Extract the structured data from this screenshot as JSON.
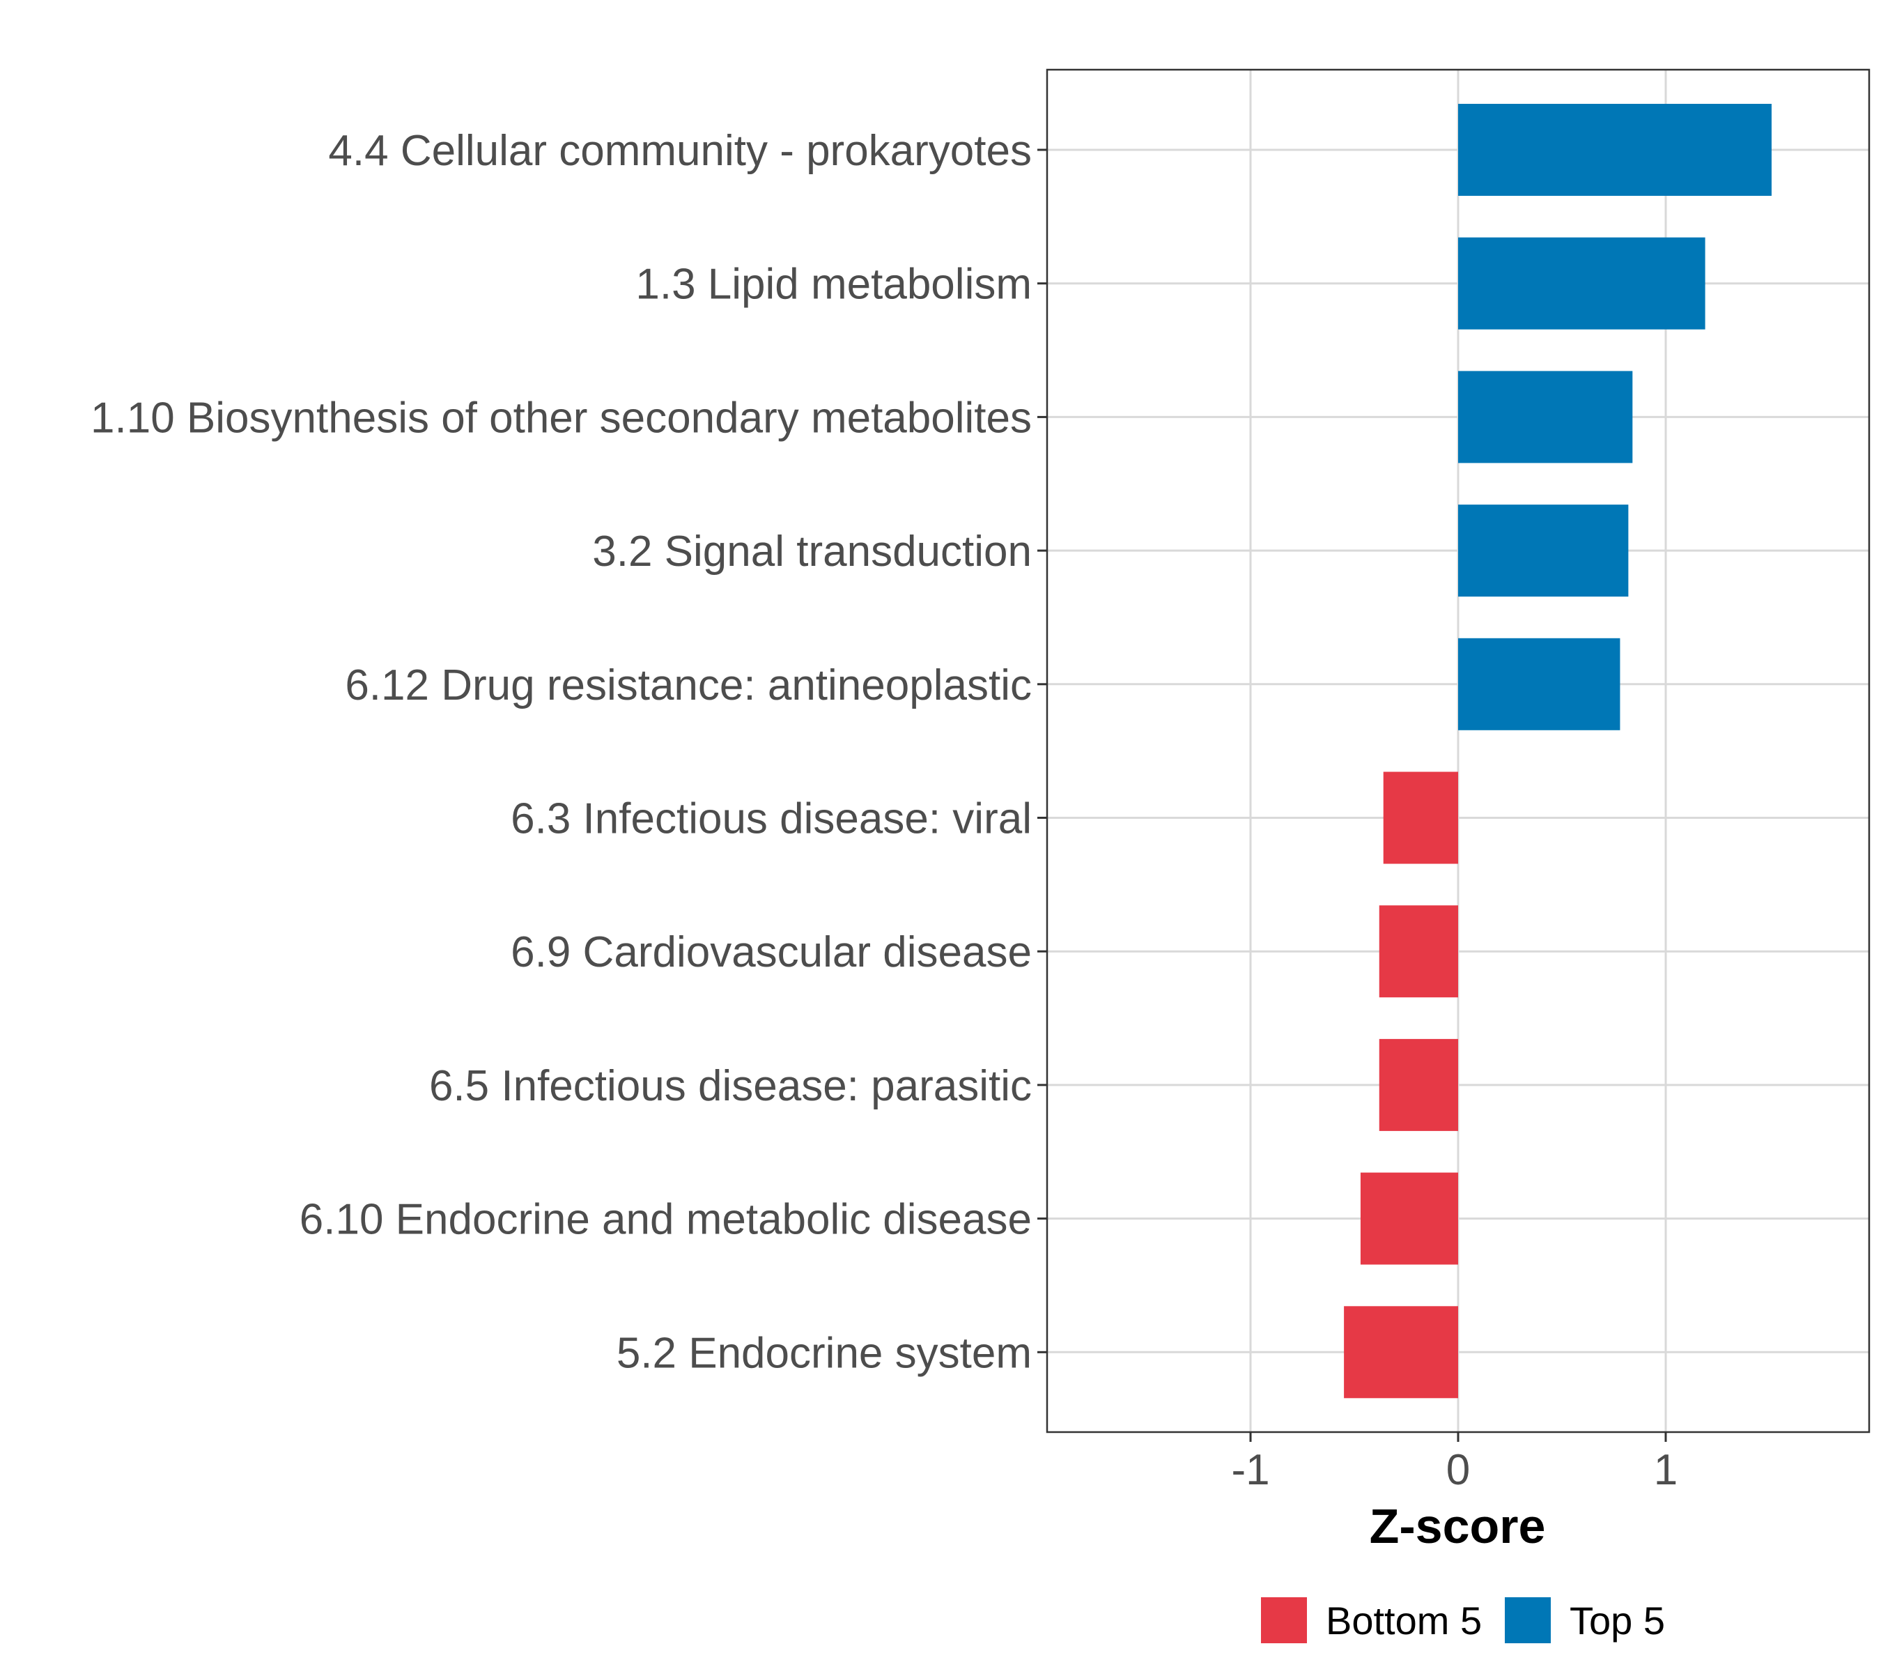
{
  "chart_data": {
    "type": "bar",
    "orientation": "horizontal",
    "categories": [
      "4.4 Cellular community - prokaryotes",
      "1.3 Lipid metabolism",
      "1.10 Biosynthesis of other secondary metabolites",
      "3.2 Signal transduction",
      "6.12 Drug resistance: antineoplastic",
      "6.3 Infectious disease: viral",
      "6.9 Cardiovascular disease",
      "6.5 Infectious disease: parasitic",
      "6.10 Endocrine and metabolic disease",
      "5.2 Endocrine system"
    ],
    "values": [
      1.51,
      1.19,
      0.84,
      0.82,
      0.78,
      -0.36,
      -0.38,
      -0.38,
      -0.47,
      -0.55
    ],
    "groups": [
      "Top 5",
      "Top 5",
      "Top 5",
      "Top 5",
      "Top 5",
      "Bottom 5",
      "Bottom 5",
      "Bottom 5",
      "Bottom 5",
      "Bottom 5"
    ],
    "xlabel": "Z-score",
    "ylabel": "",
    "xlim": [
      -1.98,
      1.98
    ],
    "xticks": [
      -1,
      0,
      1
    ],
    "xtick_labels": [
      "-1",
      "0",
      "1"
    ],
    "grid": true,
    "legend": {
      "placement": "bottom",
      "items": [
        {
          "label": "Bottom 5",
          "color": "#e63946"
        },
        {
          "label": "Top 5",
          "color": "#0077b6"
        }
      ]
    }
  }
}
